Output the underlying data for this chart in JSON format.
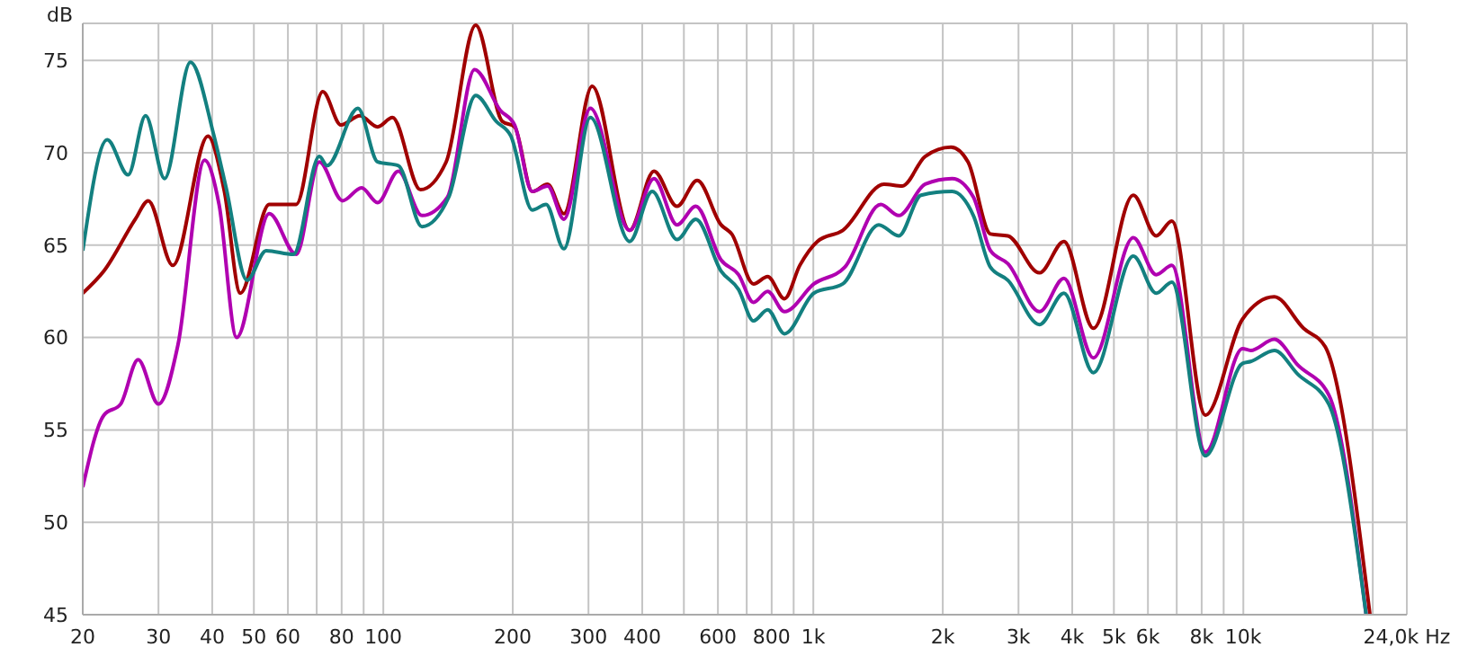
{
  "chart_data": {
    "type": "line",
    "ylabel": "dB",
    "log": "x",
    "grid": true,
    "marker": "none",
    "line_style": "solid",
    "xlim": [
      20,
      24000
    ],
    "ylim": [
      45,
      77
    ],
    "xticks": [
      20,
      30,
      40,
      50,
      60,
      {
        "value": 70,
        "label": null
      },
      80,
      {
        "value": 90,
        "label": null
      },
      100,
      200,
      300,
      400,
      {
        "value": 500,
        "label": null
      },
      600,
      {
        "value": 700,
        "label": null
      },
      800,
      {
        "value": 900,
        "label": null
      },
      {
        "value": 1000,
        "label": "1k"
      },
      {
        "value": 2000,
        "label": "2k"
      },
      {
        "value": 3000,
        "label": "3k"
      },
      {
        "value": 4000,
        "label": "4k"
      },
      {
        "value": 5000,
        "label": "5k"
      },
      {
        "value": 6000,
        "label": "6k"
      },
      {
        "value": 7000,
        "label": null
      },
      {
        "value": 8000,
        "label": "8k"
      },
      {
        "value": 9000,
        "label": null
      },
      {
        "value": 10000,
        "label": "10k"
      },
      {
        "value": 20000,
        "label": null
      },
      {
        "value": 24000,
        "label": "24,0k Hz"
      }
    ],
    "yticks": [
      45,
      50,
      55,
      60,
      65,
      70,
      75
    ],
    "series": [
      {
        "color": "#a00000",
        "x": [
          20,
          22.4,
          26.5,
          28.4,
          32.4,
          39.1,
          42.7,
          46.5,
          54.3,
          62.7,
          72.3,
          79.7,
          88.2,
          97,
          105,
          122,
          140,
          164,
          189,
          202,
          222,
          241,
          263,
          306,
          374,
          426,
          482,
          537,
          610,
          646,
          726,
          783,
          857,
          930,
          1022,
          1171,
          1460,
          1610,
          1820,
          2090,
          2290,
          2582,
          2834,
          3358,
          3827,
          4480,
          5548,
          6270,
          6820,
          8160,
          9960,
          11800,
          13800,
          15500,
          19700
        ],
        "values": [
          62.4,
          63.6,
          66.4,
          67.4,
          63.9,
          70.9,
          67.9,
          62.4,
          67.2,
          67.2,
          73.3,
          71.5,
          72,
          71.4,
          71.9,
          68,
          69.5,
          76.9,
          71.7,
          71.4,
          67.9,
          68.3,
          66.7,
          73.6,
          65.8,
          69,
          67.1,
          68.5,
          66.1,
          65.6,
          62.9,
          63.3,
          62.1,
          63.9,
          65.2,
          65.8,
          68.3,
          68.2,
          69.8,
          70.3,
          69.5,
          65.6,
          65.5,
          63.5,
          65.2,
          60.5,
          67.7,
          65.5,
          66.3,
          55.8,
          61,
          62.2,
          60.5,
          59.5,
          45
        ]
      },
      {
        "color": "#b000b0",
        "x": [
          20,
          22.4,
          24.5,
          26.9,
          30,
          33.3,
          38.4,
          41.5,
          45.6,
          54.3,
          62.7,
          71,
          80.4,
          89,
          97,
          108.4,
          123,
          141,
          163,
          187,
          202,
          222,
          241,
          263,
          303,
          374,
          426,
          482,
          533,
          610,
          670,
          726,
          783,
          857,
          1003,
          1183,
          1435,
          1580,
          1820,
          2103,
          2356,
          2582,
          2834,
          3358,
          3827,
          4480,
          5548,
          6270,
          6820,
          8160,
          9960,
          10400,
          11800,
          13400,
          15800,
          19300
        ],
        "values": [
          51.9,
          55.8,
          56.4,
          58.8,
          56.4,
          59.6,
          69.6,
          67.2,
          60,
          66.7,
          64.5,
          69.5,
          67.4,
          68.1,
          67.3,
          69,
          66.6,
          67.6,
          74.5,
          72.3,
          71.5,
          67.9,
          68.2,
          66.4,
          72.4,
          65.8,
          68.6,
          66.1,
          67.1,
          64.2,
          63.4,
          61.9,
          62.5,
          61.4,
          62.9,
          63.8,
          67.2,
          66.6,
          68.3,
          68.6,
          67.6,
          64.7,
          64,
          61.4,
          63.2,
          58.9,
          65.4,
          63.4,
          63.9,
          53.8,
          59.4,
          59.3,
          59.9,
          58.5,
          56.9,
          45
        ]
      },
      {
        "color": "#138080",
        "x": [
          20,
          22.8,
          25.5,
          28,
          31,
          35.6,
          40.3,
          43.1,
          48.2,
          53.4,
          61.8,
          71,
          74,
          87.3,
          97,
          108.4,
          123,
          142,
          164,
          183,
          198,
          222,
          239,
          263,
          303,
          374,
          422,
          482,
          533,
          610,
          670,
          726,
          783,
          857,
          1003,
          1171,
          1420,
          1580,
          1780,
          2103,
          2356,
          2582,
          2834,
          3358,
          3827,
          4480,
          5548,
          6270,
          6820,
          8160,
          9960,
          10400,
          11800,
          13400,
          15800,
          19300
        ],
        "values": [
          64.7,
          70.7,
          68.8,
          72,
          68.6,
          74.9,
          71,
          68.1,
          63.1,
          64.7,
          64.5,
          69.8,
          69.3,
          72.4,
          69.5,
          69.3,
          66,
          67.6,
          73.1,
          71.7,
          70.9,
          66.9,
          67.2,
          64.8,
          71.9,
          65.2,
          67.9,
          65.3,
          66.4,
          63.6,
          62.6,
          60.9,
          61.5,
          60.2,
          62.4,
          62.9,
          66.1,
          65.5,
          67.7,
          67.9,
          66.6,
          63.8,
          63.1,
          60.7,
          62.4,
          58.1,
          64.4,
          62.4,
          63,
          53.6,
          58.6,
          58.7,
          59.3,
          58,
          56.4,
          45
        ]
      }
    ]
  }
}
